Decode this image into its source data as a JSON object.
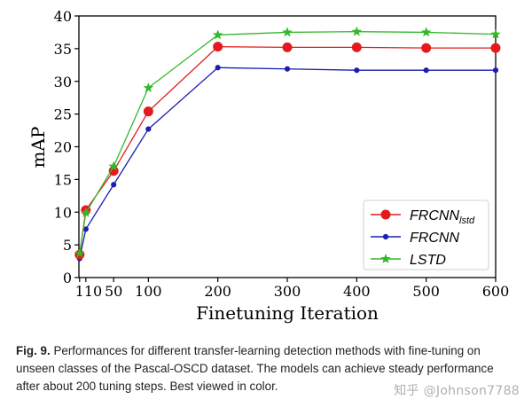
{
  "chart_data": {
    "type": "line",
    "title": "",
    "xlabel": "Finetuning Iteration",
    "ylabel": "mAP",
    "ylim": [
      0,
      40
    ],
    "yticks": [
      0,
      5,
      10,
      15,
      20,
      25,
      30,
      35,
      40
    ],
    "xticks": [
      "1",
      "10",
      "50",
      "100",
      "200",
      "300",
      "400",
      "500",
      "600"
    ],
    "xtick_values": [
      1,
      10,
      50,
      100,
      200,
      300,
      400,
      500,
      600
    ],
    "legend_position": "lower-right",
    "series": [
      {
        "name": "FRCNN",
        "name_subscript": "lstd",
        "marker": "circle-large",
        "color": "#e41a1c",
        "x": [
          1,
          10,
          50,
          100,
          200,
          300,
          400,
          500,
          600
        ],
        "values": [
          3.5,
          10.3,
          16.3,
          25.4,
          35.3,
          35.2,
          35.2,
          35.1,
          35.1
        ]
      },
      {
        "name": "FRCNN",
        "name_subscript": "",
        "marker": "circle-small",
        "color": "#1a1fb0",
        "x": [
          1,
          10,
          50,
          100,
          200,
          300,
          400,
          500,
          600
        ],
        "values": [
          2.9,
          7.4,
          14.2,
          22.7,
          32.1,
          31.9,
          31.7,
          31.7,
          31.7
        ]
      },
      {
        "name": "LSTD",
        "name_subscript": "",
        "marker": "star",
        "color": "#33b82a",
        "x": [
          1,
          10,
          50,
          100,
          200,
          300,
          400,
          500,
          600
        ],
        "values": [
          3.7,
          9.9,
          17.0,
          29.0,
          37.1,
          37.5,
          37.6,
          37.5,
          37.2
        ]
      }
    ]
  },
  "caption": {
    "label": "Fig. 9.",
    "text": "Performances for different transfer-learning detection methods with fine-tuning on unseen classes of the Pascal-OSCD dataset. The models can achieve steady performance after about 200 tuning steps. Best viewed in color."
  },
  "watermark": "知乎 @Johnson7788"
}
